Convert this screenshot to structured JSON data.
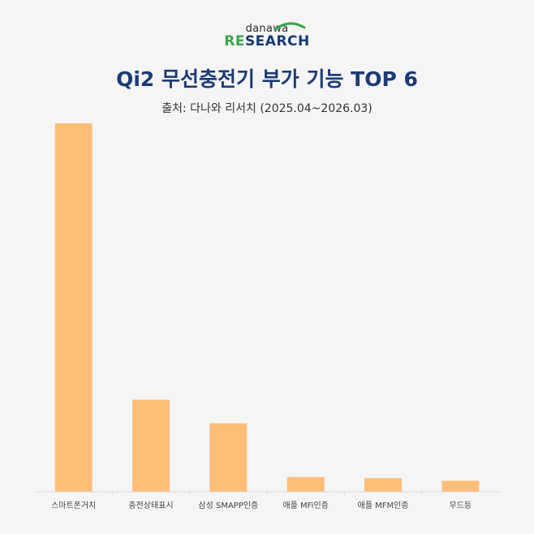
{
  "logo": {
    "top": "danawa",
    "re": "RE",
    "rest": "SEARCH"
  },
  "title": "Qi2 무선충전기 부가 기능 TOP 6",
  "subtitle": "출처: 다나와 리서치 (2025.04~2026.03)",
  "colors": {
    "bar": "#ffbe78",
    "title": "#1c3a76",
    "logo_green": "#3aa64a",
    "axis": "#d8d8d8"
  },
  "chart_data": {
    "type": "bar",
    "title": "Qi2 무선충전기 부가 기능 TOP 6",
    "categories": [
      "스마트폰거치",
      "충전상태표시",
      "삼성 SMAPP인증",
      "애플 MFi인증",
      "애플 MFM인증",
      "무드등"
    ],
    "values": [
      100,
      25,
      18.6,
      4,
      3.7,
      3
    ],
    "xlabel": "",
    "ylabel": "",
    "ylim": [
      0,
      100
    ],
    "grid": false,
    "legend": "none"
  }
}
